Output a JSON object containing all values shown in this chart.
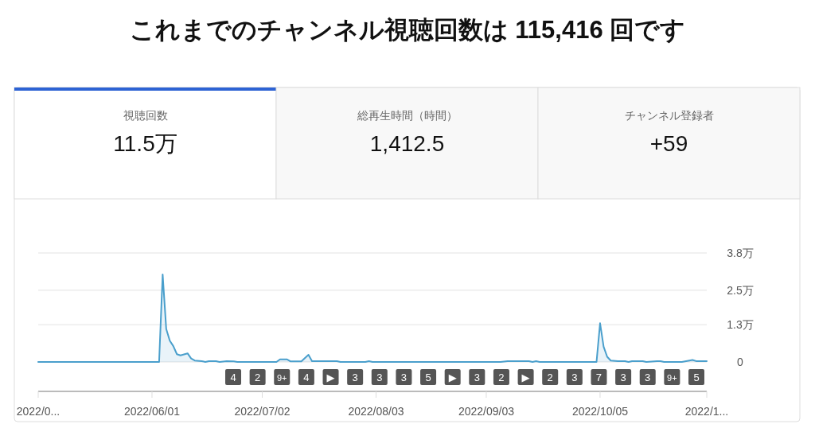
{
  "chart_data": [
    {
      "type": "other",
      "title": "これまでのチャンネル視聴回数は 115,416 回です",
      "annotations": [
        "視聴回数",
        "11.5万",
        "総再生時間（時間）",
        "1,412.5",
        "チャンネル登録者",
        "+59"
      ]
    },
    {
      "type": "area",
      "x": [
        "2022-04-30",
        "2022-06-03",
        "2022-06-04",
        "2022-06-05",
        "2022-06-06",
        "2022-06-07",
        "2022-06-08",
        "2022-06-09",
        "2022-06-11",
        "2022-06-12",
        "2022-06-13",
        "2022-06-15",
        "2022-06-16",
        "2022-06-17",
        "2022-06-19",
        "2022-06-20",
        "2022-06-22",
        "2022-06-24",
        "2022-06-25",
        "2022-07-06",
        "2022-07-07",
        "2022-07-09",
        "2022-07-10",
        "2022-07-13",
        "2022-07-15",
        "2022-07-16",
        "2022-07-23",
        "2022-07-24",
        "2022-07-31",
        "2022-08-01",
        "2022-08-02",
        "2022-09-07",
        "2022-09-09",
        "2022-09-15",
        "2022-09-16",
        "2022-09-17",
        "2022-09-18",
        "2022-10-04",
        "2022-10-05",
        "2022-10-06",
        "2022-10-07",
        "2022-10-08",
        "2022-10-10",
        "2022-10-12",
        "2022-10-13",
        "2022-10-14",
        "2022-10-17",
        "2022-10-18",
        "2022-10-21",
        "2022-10-22",
        "2022-10-23",
        "2022-10-28",
        "2022-10-31",
        "2022-11-01",
        "2022-11-04"
      ],
      "series": [
        {
          "color": "#4a9fcc",
          "values": [
            0,
            0,
            3.05,
            1.15,
            0.74,
            0.55,
            0.27,
            0.23,
            0.3,
            0.12,
            0.05,
            0.03,
            0,
            0.03,
            0.03,
            0,
            0.03,
            0.02,
            0,
            0,
            0.09,
            0.09,
            0.02,
            0.02,
            0.25,
            0.03,
            0.03,
            0,
            0,
            0.03,
            0,
            0,
            0.03,
            0.03,
            0,
            0.03,
            0,
            0,
            1.35,
            0.53,
            0.18,
            0.05,
            0.03,
            0.03,
            0,
            0.03,
            0.03,
            0,
            0.03,
            0.03,
            0,
            0,
            0.07,
            0.03,
            0.03
          ]
        }
      ],
      "xlim": [
        "2022-04-30",
        "2022-11-04"
      ],
      "xticks": [
        {
          "value": "2022-04-30",
          "label": "2022/0..."
        },
        {
          "value": "2022-06-01",
          "label": "2022/06/01"
        },
        {
          "value": "2022-07-02",
          "label": "2022/07/02"
        },
        {
          "value": "2022-08-03",
          "label": "2022/08/03"
        },
        {
          "value": "2022-09-03",
          "label": "2022/09/03"
        },
        {
          "value": "2022-10-05",
          "label": "2022/10/05"
        },
        {
          "value": "2022-11-04",
          "label": "2022/1..."
        }
      ],
      "ylim": [
        0,
        3.8
      ],
      "yticks": [
        0,
        {
          "value": 1.3,
          "label": "1.3万"
        },
        {
          "value": 2.5,
          "label": "2.5万"
        },
        {
          "value": 3.8,
          "label": "3.8万"
        }
      ],
      "grid": "y",
      "annotations": [
        "4",
        "2",
        "9+",
        "4",
        "▶",
        "3",
        "3",
        "3",
        "5",
        "▶",
        "3",
        "2",
        "▶",
        "2",
        "3",
        "7",
        "3",
        "3",
        "9+",
        "5"
      ]
    }
  ]
}
